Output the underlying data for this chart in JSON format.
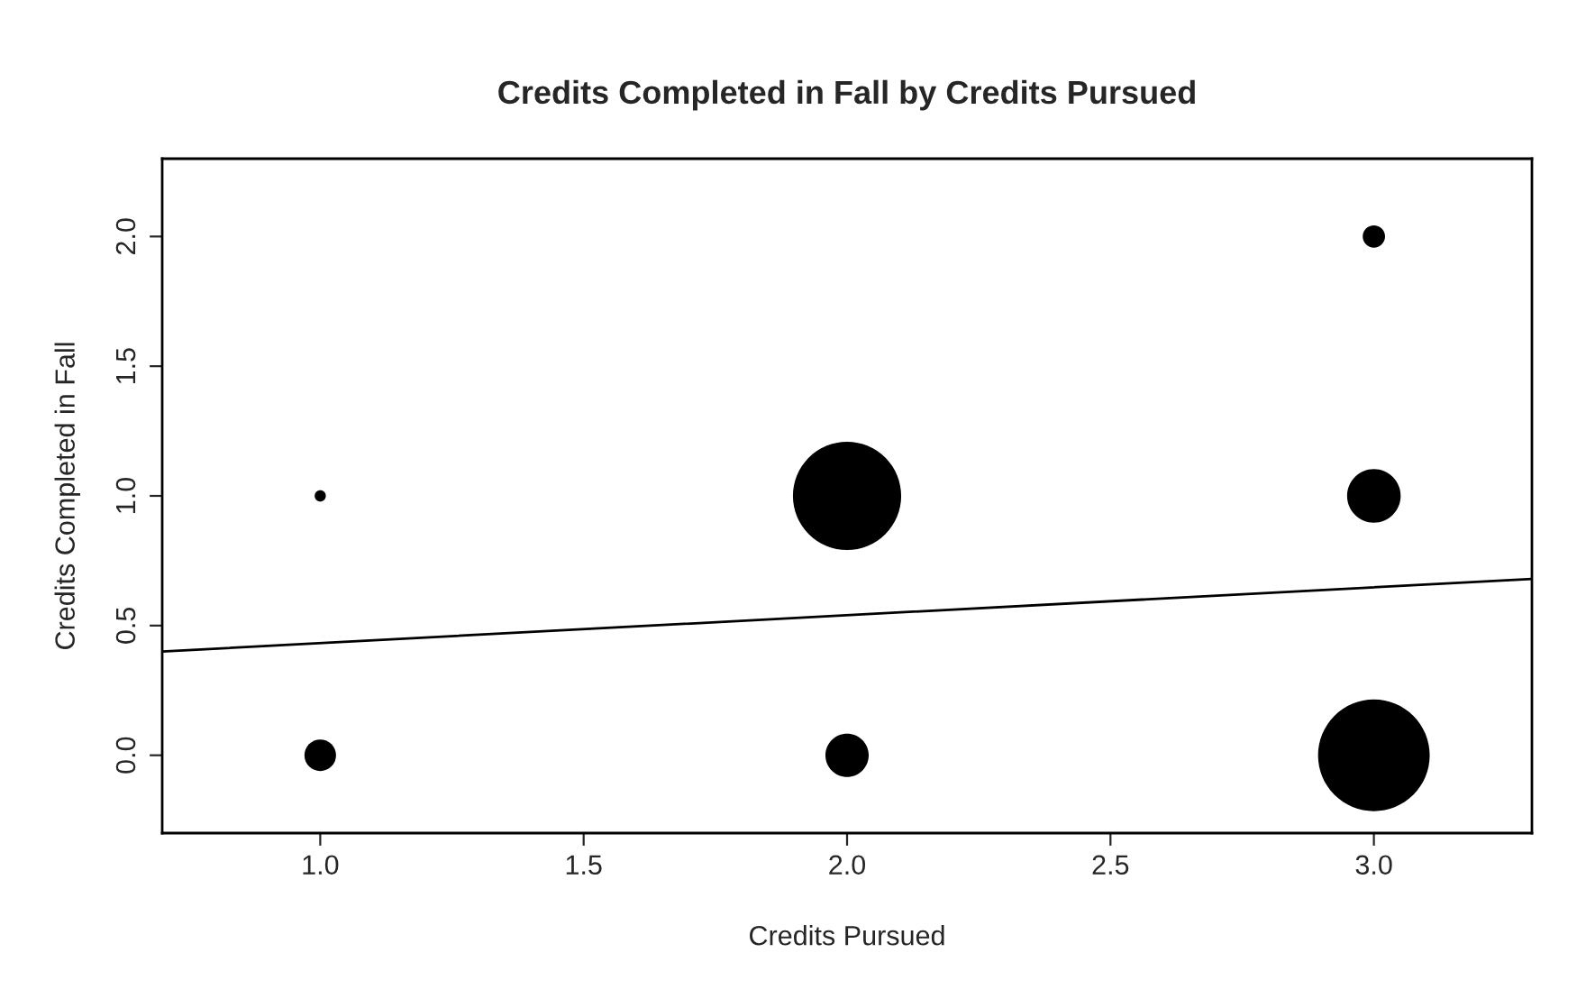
{
  "chart_data": {
    "type": "bubble",
    "title": "Credits Completed in Fall by Credits Pursued",
    "xlabel": "Credits Pursued",
    "ylabel": "Credits Completed in Fall",
    "series": [
      {
        "color": "#000000",
        "marker": "circle",
        "x": [
          1.0,
          1.0,
          2.0,
          2.0,
          3.0,
          3.0,
          3.0
        ],
        "values": [
          0.0,
          1.0,
          0.0,
          1.0,
          0.0,
          1.0,
          2.0
        ],
        "sizes": [
          0.08,
          0.01,
          0.15,
          0.94,
          1,
          0.23,
          0.04
        ]
      },
      {
        "type": "line",
        "marker": "none",
        "color": "#000000",
        "x": [
          0.7,
          3.3
        ],
        "values": [
          0.4,
          0.68
        ]
      }
    ],
    "xlim": [
      0.7,
      3.3
    ],
    "ylim": [
      -0.3,
      2.3
    ],
    "xticks": [
      {
        "value": 1,
        "label": "1.0"
      },
      1.5,
      {
        "value": 2,
        "label": "2.0"
      },
      2.5,
      {
        "value": 3,
        "label": "3.0"
      }
    ],
    "yticks": [
      {
        "value": 0,
        "label": "0.0"
      },
      0.5,
      {
        "value": 1,
        "label": "1.0"
      },
      1.5,
      {
        "value": 2,
        "label": "2.0"
      }
    ],
    "grid": false,
    "legend": false
  }
}
